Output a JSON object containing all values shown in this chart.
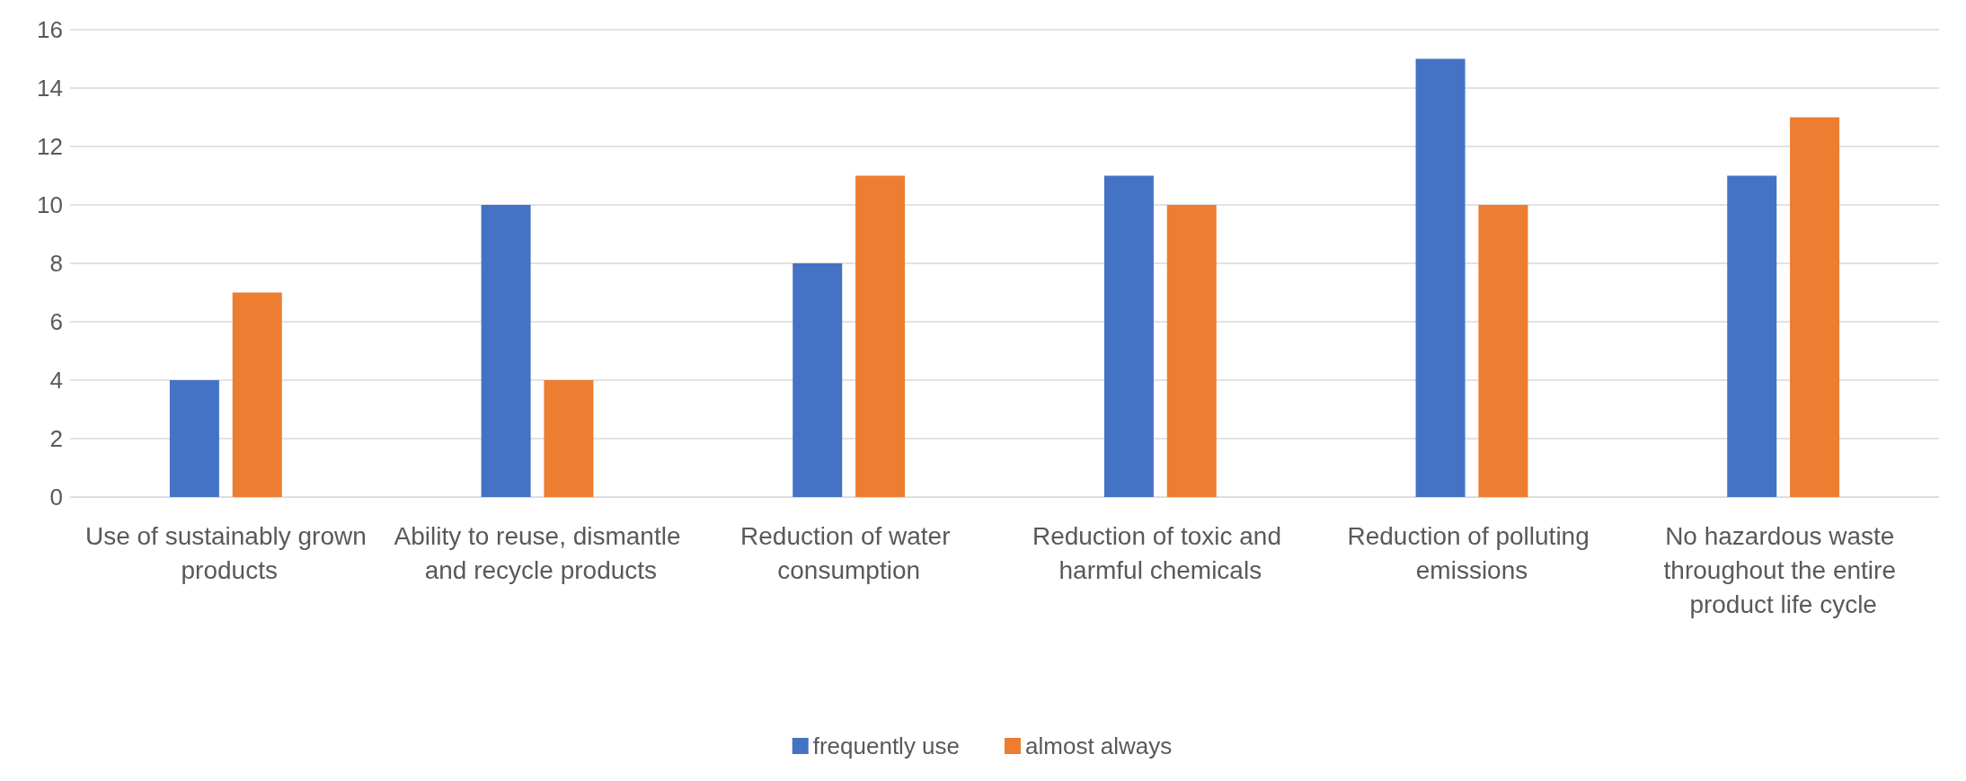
{
  "chart_data": {
    "type": "bar",
    "categories": [
      "Use of sustainably grown products",
      "Ability to reuse, dismantle and recycle products",
      "Reduction of water consumption",
      "Reduction of toxic and harmful chemicals",
      "Reduction of polluting emissions",
      "No hazardous waste throughout the entire product life cycle"
    ],
    "series": [
      {
        "name": "frequently use",
        "color": "#4472c4",
        "values": [
          4,
          10,
          8,
          11,
          15,
          11
        ]
      },
      {
        "name": "almost always",
        "color": "#ed7d31",
        "values": [
          7,
          4,
          11,
          10,
          10,
          13
        ]
      }
    ],
    "ylim": [
      0,
      16
    ],
    "yticks": [
      0,
      2,
      4,
      6,
      8,
      10,
      12,
      14,
      16
    ],
    "grid": "y",
    "legend": "bottom"
  }
}
